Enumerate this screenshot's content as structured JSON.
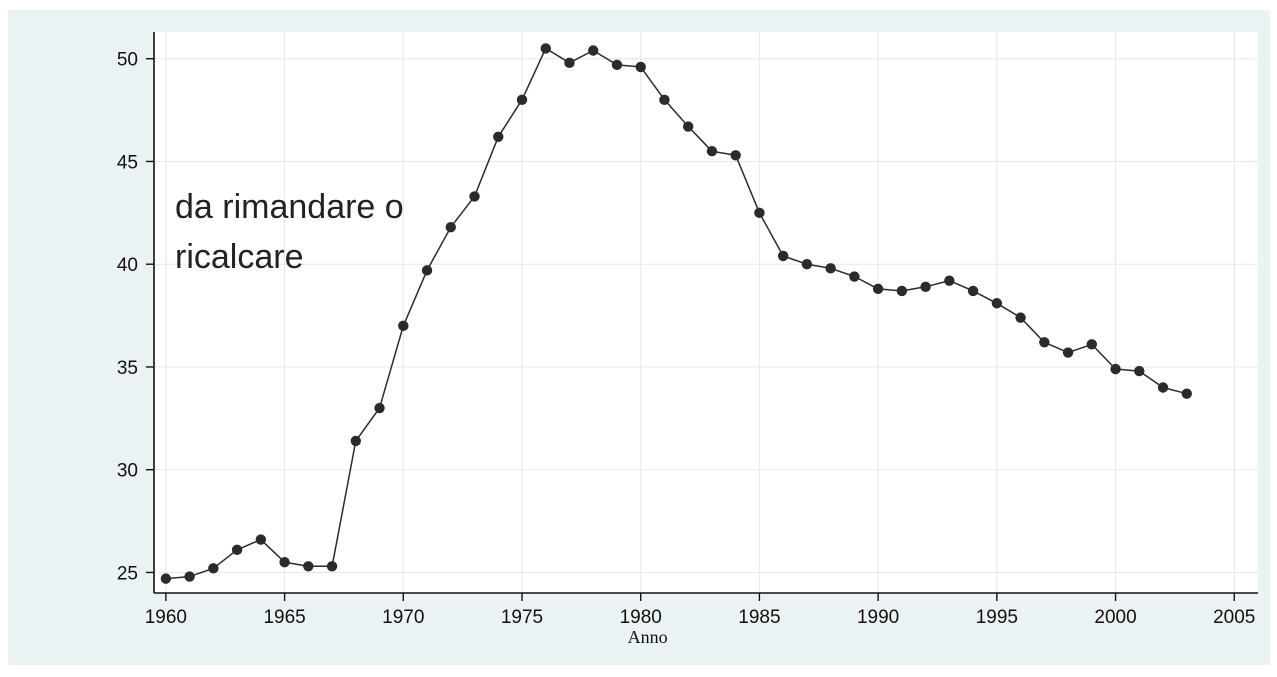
{
  "chart_data": {
    "type": "line",
    "xlabel": "Anno",
    "ylabel": "",
    "xlim": [
      1959.5,
      2006
    ],
    "ylim": [
      24,
      51.3
    ],
    "xticks": [
      1960,
      1965,
      1970,
      1975,
      1980,
      1985,
      1990,
      1995,
      2000,
      2005
    ],
    "yticks": [
      25,
      30,
      35,
      40,
      45,
      50
    ],
    "grid": true,
    "marker": "filled-circle",
    "annotation": [
      "da rimandare o",
      "ricalcare"
    ],
    "series": [
      {
        "color": "#2b2b2b",
        "x": [
          1960,
          1961,
          1962,
          1963,
          1964,
          1965,
          1966,
          1967,
          1968,
          1969,
          1970,
          1971,
          1972,
          1973,
          1974,
          1975,
          1976,
          1977,
          1978,
          1979,
          1980,
          1981,
          1982,
          1983,
          1984,
          1985,
          1986,
          1987,
          1988,
          1989,
          1990,
          1991,
          1992,
          1993,
          1994,
          1995,
          1996,
          1997,
          1998,
          1999,
          2000,
          2001,
          2002,
          2003
        ],
        "y": [
          24.7,
          24.8,
          25.2,
          26.1,
          26.6,
          25.5,
          25.3,
          25.3,
          31.4,
          33.0,
          37.0,
          39.7,
          41.8,
          43.3,
          46.2,
          48.0,
          50.5,
          49.8,
          50.4,
          49.7,
          49.6,
          48.0,
          46.7,
          45.5,
          45.3,
          42.5,
          40.4,
          40.0,
          39.8,
          39.4,
          38.8,
          38.7,
          38.9,
          39.2,
          38.7,
          38.1,
          37.4,
          36.2,
          35.7,
          36.1,
          34.9,
          34.8,
          34.0,
          33.7
        ]
      }
    ]
  }
}
